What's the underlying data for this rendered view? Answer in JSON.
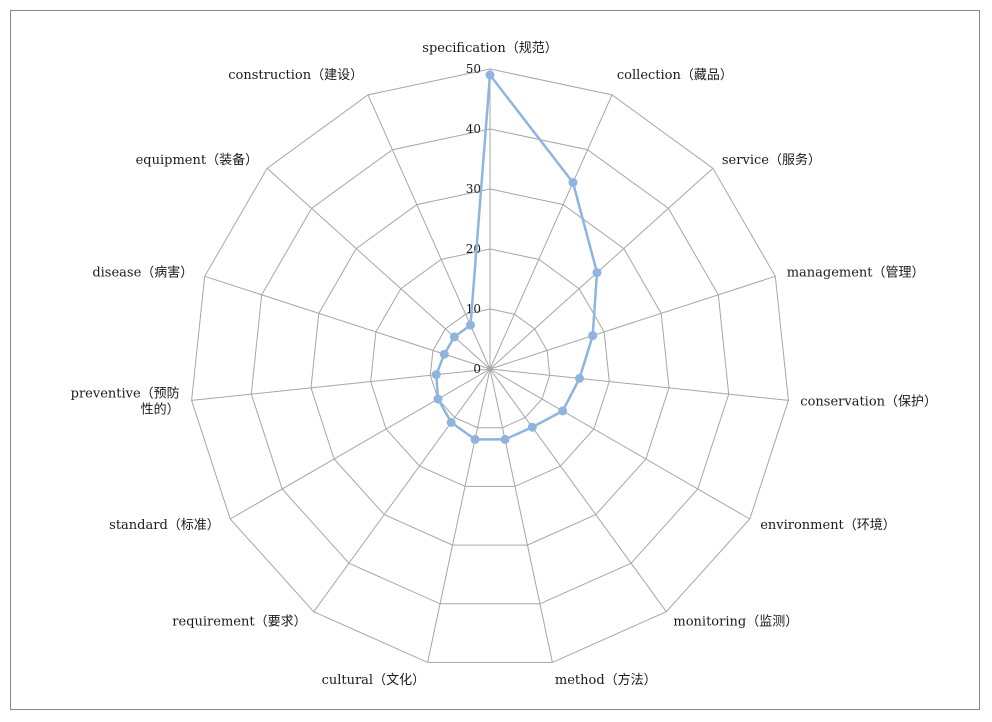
{
  "chart_data": {
    "type": "radar",
    "title": "",
    "categories": [
      "specification（规范）",
      "collection（藏品）",
      "service（服务）",
      "management（管理）",
      "conservation（保护）",
      "environment（环境）",
      "monitoring（监测）",
      "method（方法）",
      "cultural（文化）",
      "requirement（要求）",
      "standard（标准）",
      "preventive（预防性的）",
      "disease（病害）",
      "equipment（装备）",
      "construction（建设）"
    ],
    "category_lines": [
      [
        "specification（规范）"
      ],
      [
        "collection（藏品）"
      ],
      [
        "service（服务）"
      ],
      [
        "management（管理）"
      ],
      [
        "conservation（保护）"
      ],
      [
        "environment（环境）"
      ],
      [
        "monitoring（监测）"
      ],
      [
        "method（方法）"
      ],
      [
        "cultural（文化）"
      ],
      [
        "requirement（要求）"
      ],
      [
        "standard（标准）"
      ],
      [
        "preventive（预防",
        "性的）"
      ],
      [
        "disease（病害）"
      ],
      [
        "equipment（装备）"
      ],
      [
        "construction（建设）"
      ]
    ],
    "series": [
      {
        "values": [
          49,
          34,
          24,
          18,
          15,
          14,
          12,
          12,
          12,
          11,
          10,
          9,
          8,
          8,
          8
        ]
      }
    ],
    "rlim": [
      0,
      50
    ],
    "r_ticks": [
      0,
      10,
      20,
      30,
      40,
      50
    ],
    "grid": true,
    "legend": "none",
    "colors": {
      "series": "#8eb4df",
      "grid": "#a6a6a6",
      "frame": "#888888",
      "text": "#1a1a1a"
    }
  }
}
